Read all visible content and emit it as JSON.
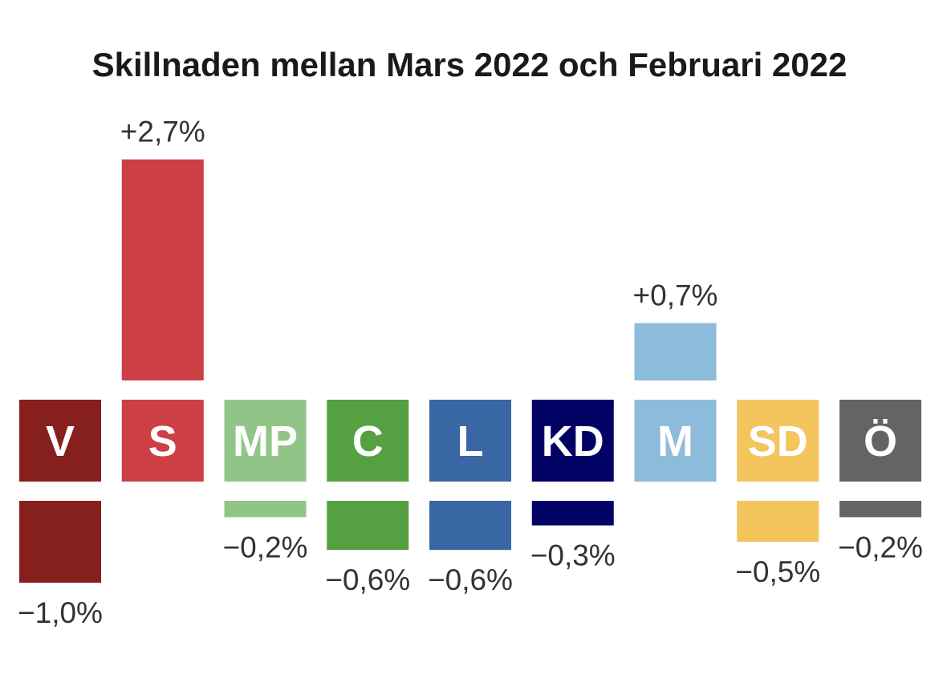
{
  "chart_data": {
    "type": "bar",
    "title": "Skillnaden mellan Mars 2022 och Februari 2022",
    "categories": [
      "V",
      "S",
      "MP",
      "C",
      "L",
      "KD",
      "M",
      "SD",
      "Ö"
    ],
    "values": [
      -1.0,
      2.7,
      -0.2,
      -0.6,
      -0.6,
      -0.3,
      0.7,
      -0.5,
      -0.2
    ],
    "value_labels": [
      "−1,0%",
      "+2,7%",
      "−0,2%",
      "−0,6%",
      "−0,6%",
      "−0,3%",
      "+0,7%",
      "−0,5%",
      "−0,2%"
    ],
    "colors": [
      "#85201d",
      "#cc3f45",
      "#91c587",
      "#55a141",
      "#3867a3",
      "#020164",
      "#8cbbdb",
      "#f4c45d",
      "#646464"
    ],
    "xlabel": "",
    "ylabel": "",
    "grid": false,
    "legend": "none"
  }
}
